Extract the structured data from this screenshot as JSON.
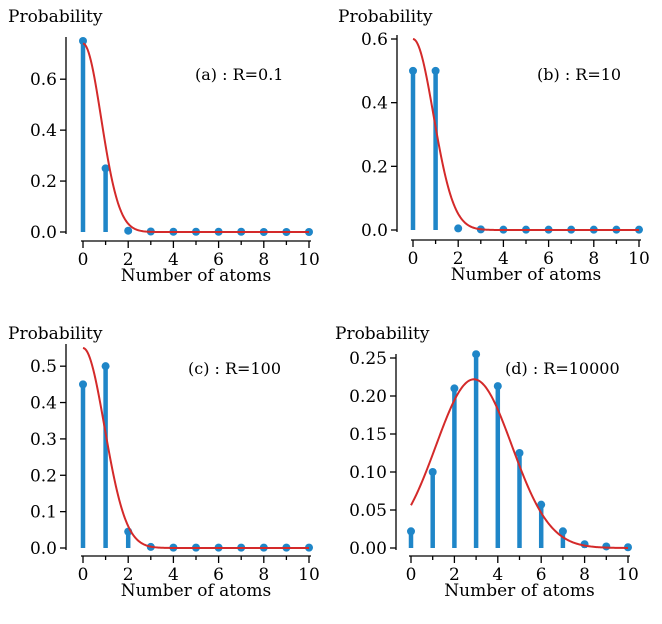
{
  "colors": {
    "stem": "#1f86c8",
    "fit": "#d42a2a"
  },
  "chart_data": [
    {
      "type": "scatter",
      "label": "(a) : R=0.1",
      "ylabel": "Probability",
      "xlabel": "Number of atoms",
      "xlim": [
        0,
        10
      ],
      "ylim": [
        0,
        0.75
      ],
      "xticks": [
        0,
        2,
        4,
        6,
        8,
        10
      ],
      "yticks": [
        "0.0",
        "0.2",
        "0.4",
        "0.6"
      ],
      "x": [
        0,
        1,
        2,
        3,
        4,
        5,
        6,
        7,
        8,
        9,
        10
      ],
      "values": [
        0.75,
        0.25,
        0.005,
        0.002,
        0.001,
        0.001,
        0.001,
        0.001,
        0.0,
        0.0,
        0.0
      ],
      "fit": {
        "mean": 0.0,
        "sigma": 0.8,
        "amplitude": 0.74
      }
    },
    {
      "type": "scatter",
      "label": "(b) : R=10",
      "ylabel": "Probability",
      "xlabel": "Number of atoms",
      "xlim": [
        0,
        10
      ],
      "ylim": [
        0,
        0.6
      ],
      "xticks": [
        0,
        2,
        4,
        6,
        8,
        10
      ],
      "yticks": [
        "0.0",
        "0.2",
        "0.4",
        "0.6"
      ],
      "x": [
        0,
        1,
        2,
        3,
        4,
        5,
        6,
        7,
        8,
        9,
        10
      ],
      "values": [
        0.5,
        0.5,
        0.005,
        0.002,
        0.001,
        0.001,
        0.001,
        0.001,
        0.001,
        0.001,
        0.001
      ],
      "fit": {
        "mean": 0.0,
        "sigma": 0.9,
        "amplitude": 0.6
      }
    },
    {
      "type": "scatter",
      "label": "(c) : R=100",
      "ylabel": "Probability",
      "xlabel": "Number of atoms",
      "xlim": [
        0,
        10
      ],
      "ylim": [
        0,
        0.55
      ],
      "xticks": [
        0,
        2,
        4,
        6,
        8,
        10
      ],
      "yticks": [
        "0.0",
        "0.1",
        "0.2",
        "0.3",
        "0.4",
        "0.5"
      ],
      "x": [
        0,
        1,
        2,
        3,
        4,
        5,
        6,
        7,
        8,
        9,
        10
      ],
      "values": [
        0.45,
        0.5,
        0.045,
        0.003,
        0.001,
        0.001,
        0.001,
        0.001,
        0.001,
        0.001,
        0.001
      ],
      "fit": {
        "mean": 0.0,
        "sigma": 0.95,
        "amplitude": 0.55
      }
    },
    {
      "type": "scatter",
      "label": "(d) : R=10000",
      "ylabel": "Probability",
      "xlabel": "Number of atoms",
      "xlim": [
        0,
        10
      ],
      "ylim": [
        0,
        0.25
      ],
      "xticks": [
        0,
        2,
        4,
        6,
        8,
        10
      ],
      "yticks": [
        "0.00",
        "0.05",
        "0.10",
        "0.15",
        "0.20",
        "0.25"
      ],
      "x": [
        0,
        1,
        2,
        3,
        4,
        5,
        6,
        7,
        8,
        9,
        10
      ],
      "values": [
        0.022,
        0.1,
        0.21,
        0.255,
        0.213,
        0.125,
        0.057,
        0.022,
        0.005,
        0.002,
        0.001
      ],
      "fit": {
        "mean": 2.9,
        "sigma": 1.75,
        "amplitude": 0.222
      }
    }
  ]
}
